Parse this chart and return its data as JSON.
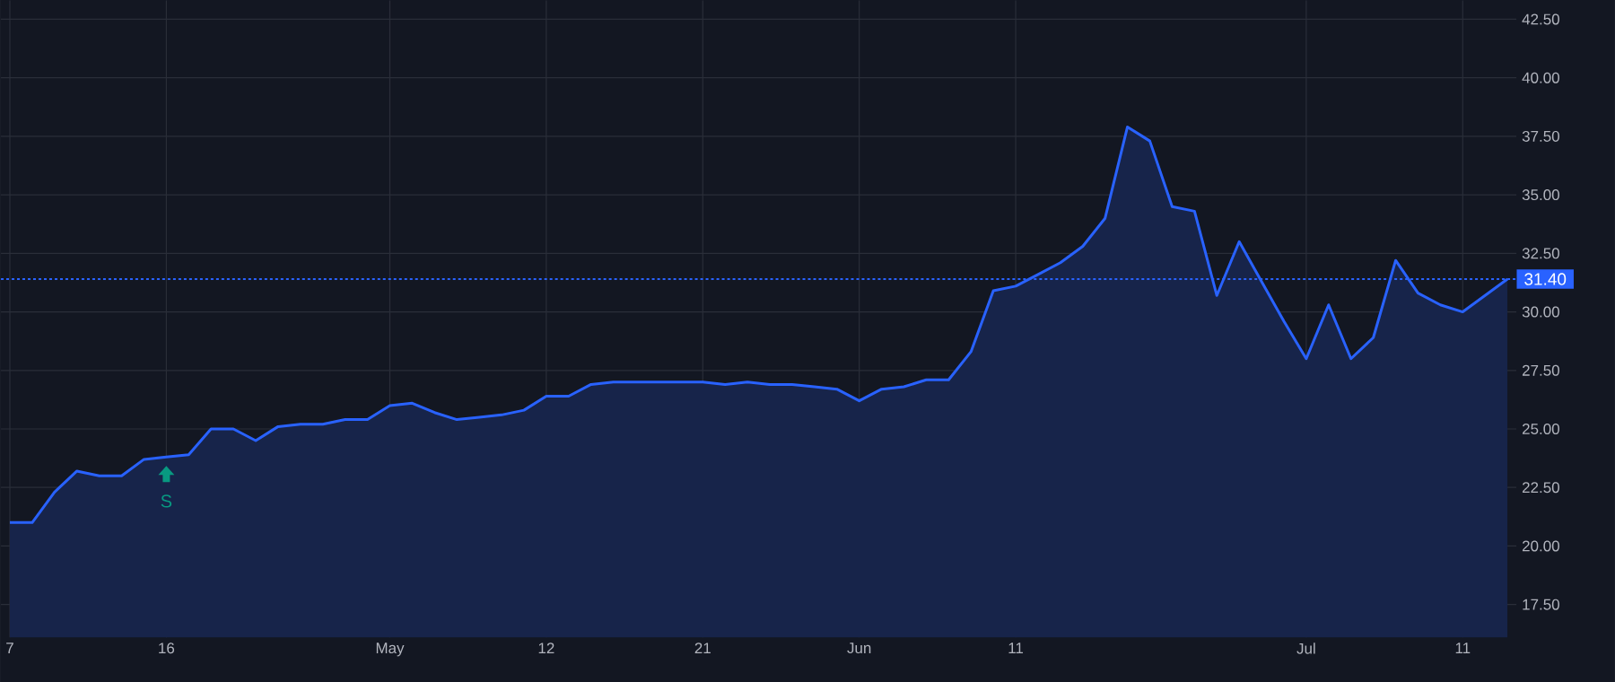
{
  "chart_data": {
    "type": "area",
    "categories": [
      "7",
      null,
      null,
      null,
      null,
      null,
      null,
      "16",
      null,
      null,
      null,
      null,
      null,
      null,
      null,
      null,
      null,
      "May",
      null,
      null,
      null,
      null,
      null,
      null,
      "12",
      null,
      null,
      null,
      null,
      null,
      null,
      "21",
      null,
      null,
      null,
      null,
      null,
      null,
      "Jun",
      null,
      null,
      null,
      null,
      null,
      null,
      "11",
      null,
      null,
      null,
      null,
      null,
      null,
      null,
      null,
      null,
      null,
      null,
      null,
      "Jul",
      null,
      null,
      null,
      null,
      null,
      null,
      "11",
      null,
      null
    ],
    "series": [
      {
        "color": "#2962ff",
        "values": [
          21.0,
          21.0,
          22.3,
          23.2,
          23.0,
          23.0,
          23.7,
          23.8,
          23.9,
          25.0,
          25.0,
          24.5,
          25.1,
          25.2,
          25.2,
          25.4,
          25.4,
          26.0,
          26.1,
          25.7,
          25.4,
          25.5,
          25.6,
          25.8,
          26.4,
          26.4,
          26.9,
          27.0,
          27.0,
          27.0,
          27.0,
          27.0,
          26.9,
          27.0,
          26.9,
          26.9,
          26.8,
          26.7,
          26.2,
          26.7,
          26.8,
          27.1,
          27.1,
          28.3,
          30.9,
          31.1,
          31.6,
          32.1,
          32.8,
          34.0,
          37.9,
          37.3,
          34.5,
          34.3,
          30.7,
          33.0,
          31.3,
          29.6,
          28.0,
          30.3,
          28.0,
          28.9,
          32.2,
          30.8,
          30.3,
          30.0,
          30.7,
          31.4
        ]
      }
    ],
    "ylim": [
      16.1,
      43.3
    ],
    "yticks": [
      {
        "value": 17.5,
        "label": "17.50"
      },
      {
        "value": 20,
        "label": "20.00"
      },
      {
        "value": 22.5,
        "label": "22.50"
      },
      {
        "value": 25,
        "label": "25.00"
      },
      {
        "value": 27.5,
        "label": "27.50"
      },
      {
        "value": 30,
        "label": "30.00"
      },
      {
        "value": 32.5,
        "label": "32.50"
      },
      {
        "value": 35,
        "label": "35.00"
      },
      {
        "value": 37.5,
        "label": "37.50"
      },
      {
        "value": 40,
        "label": "40.00"
      },
      {
        "value": 42.5,
        "label": "42.50"
      }
    ],
    "grid": true,
    "ref_lines": [
      {
        "axis": "y",
        "value": 31.4,
        "label": "31.40",
        "color": "#2962ff",
        "line_style": "dotted"
      }
    ],
    "annotations": [
      {
        "text": "S",
        "x": "16",
        "y": 23.8
      }
    ]
  }
}
